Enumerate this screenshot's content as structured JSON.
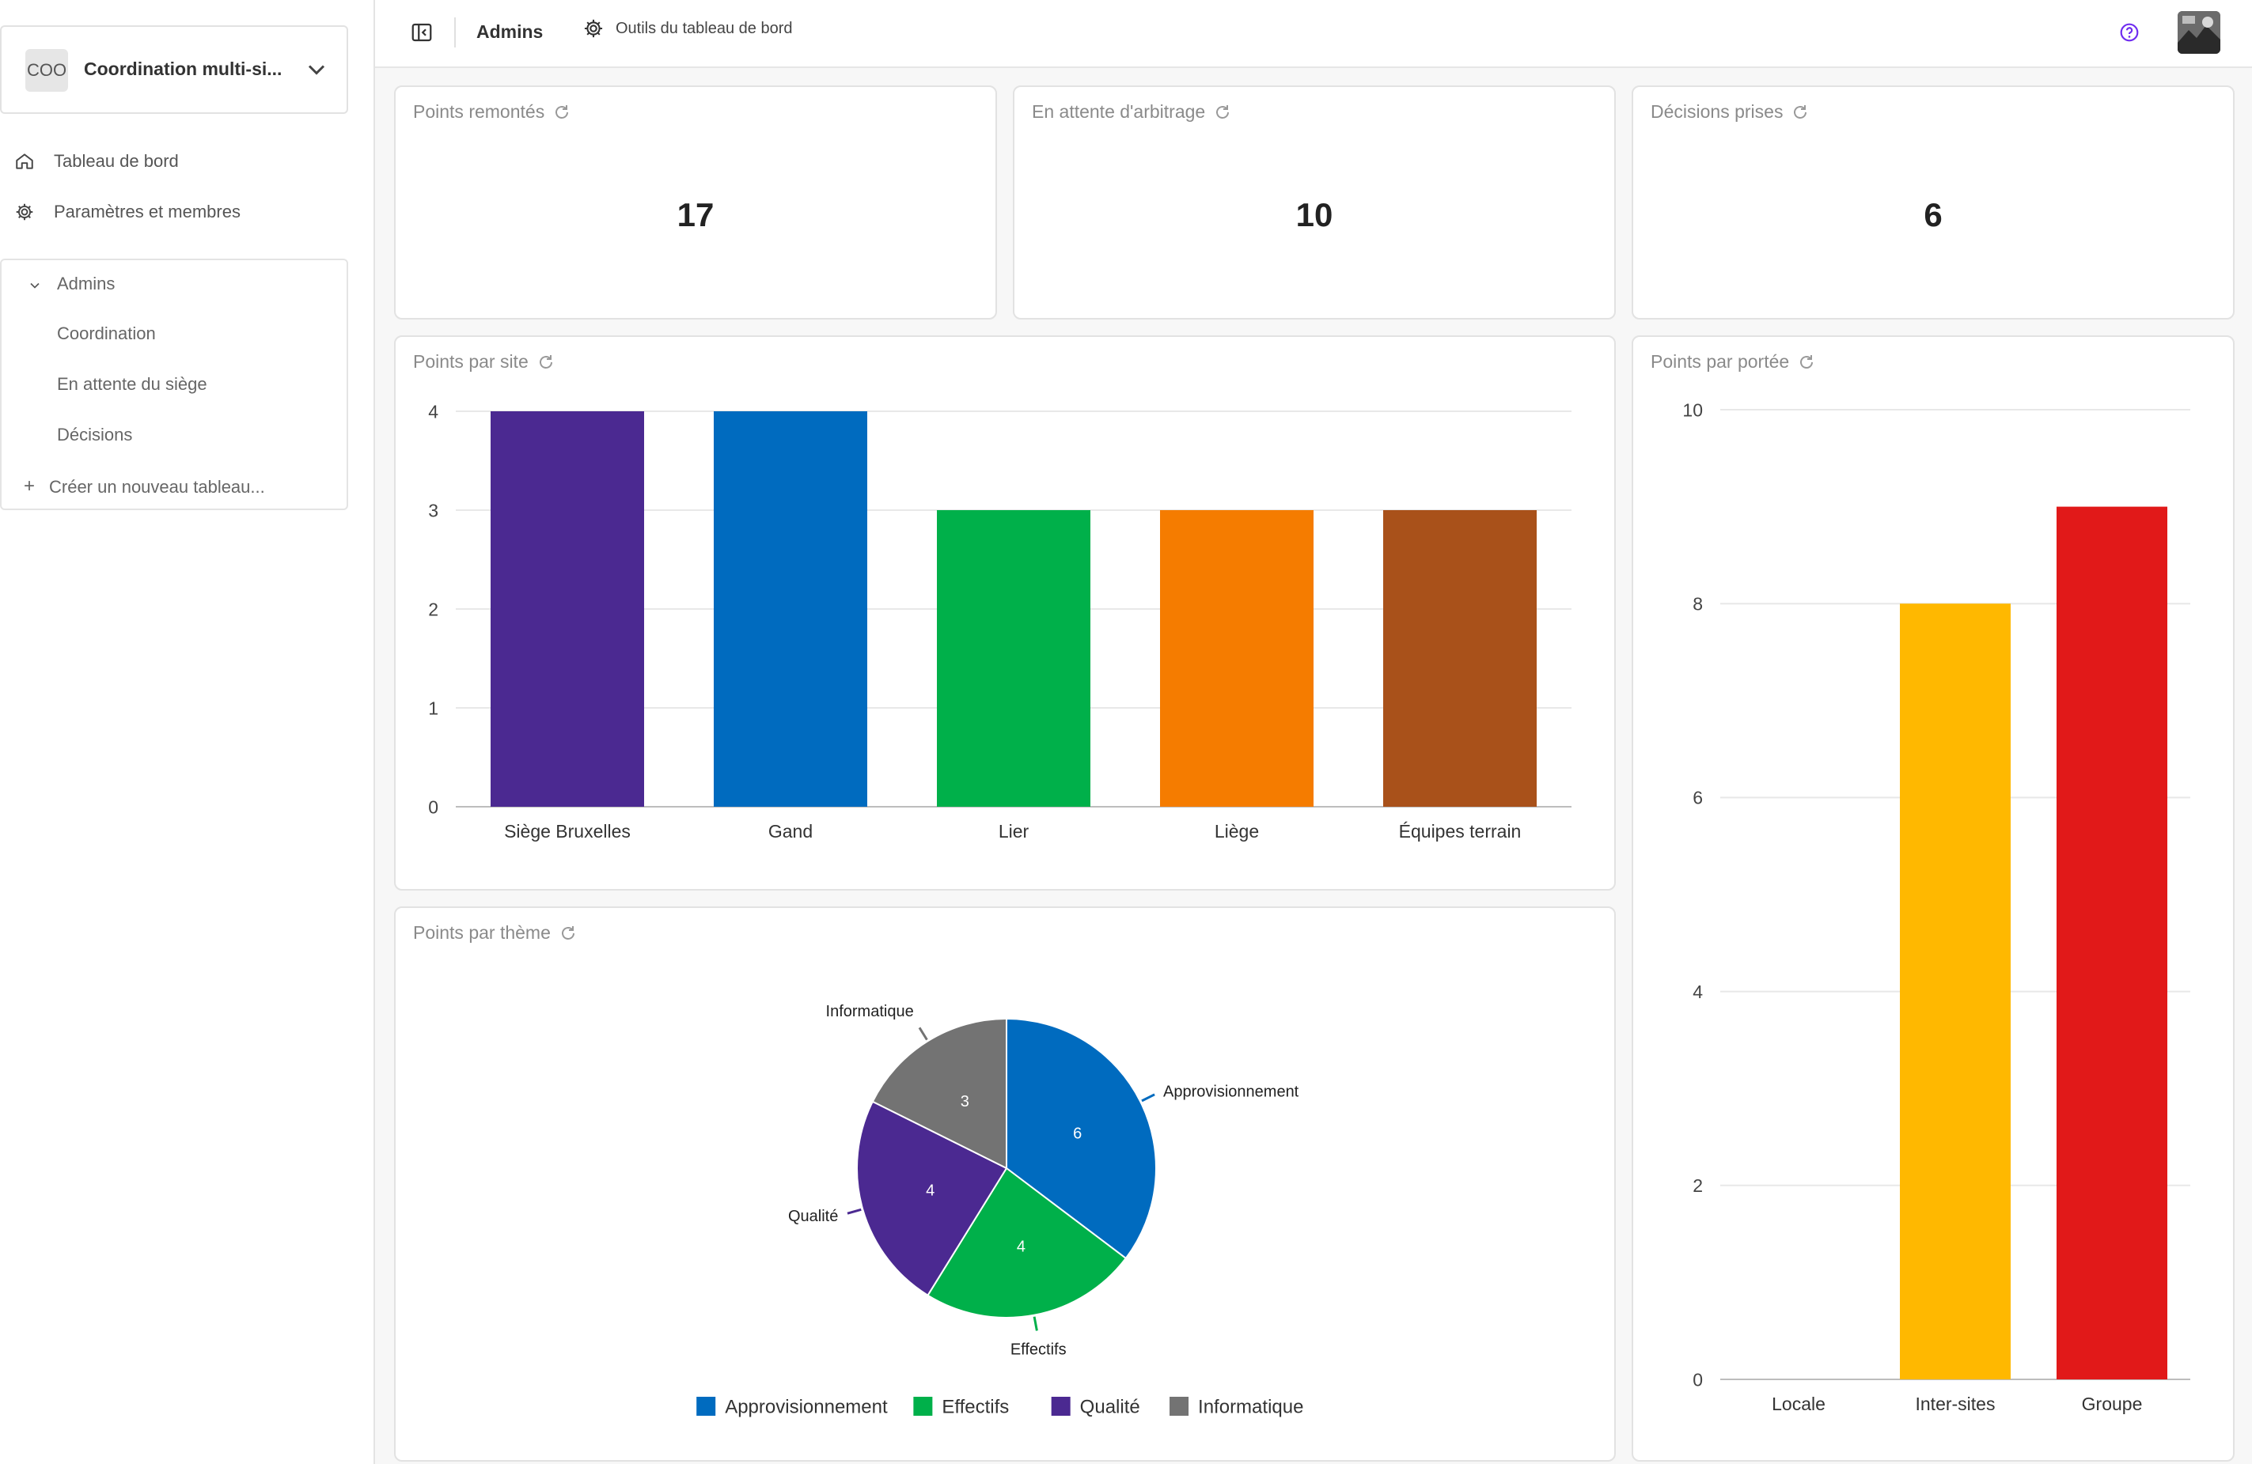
{
  "sidebar": {
    "workspace": {
      "badge": "COO",
      "name": "Coordination multi-si..."
    },
    "nav": [
      {
        "label": "Tableau de bord",
        "icon": "home-icon"
      },
      {
        "label": "Paramètres et membres",
        "icon": "gear-icon"
      }
    ],
    "group": {
      "label": "Admins"
    },
    "boards": [
      "Coordination",
      "En attente du siège",
      "Décisions"
    ],
    "create_label": "Créer un nouveau tableau..."
  },
  "topbar": {
    "title": "Admins",
    "tools_label": "Outils du tableau de bord"
  },
  "kpis": [
    {
      "title": "Points remontés",
      "value": "17"
    },
    {
      "title": "En attente d'arbitrage",
      "value": "10"
    },
    {
      "title": "Décisions prises",
      "value": "6"
    }
  ],
  "chart_titles": {
    "site": "Points par site",
    "scope": "Points par portée",
    "theme": "Points par thème"
  },
  "colors": {
    "accent": "#6f2cf0",
    "grid": "#e8e8e8"
  },
  "chart_data": [
    {
      "id": "site",
      "type": "bar",
      "categories": [
        "Siège Bruxelles",
        "Gand",
        "Lier",
        "Liège",
        "Équipes terrain"
      ],
      "values": [
        4,
        4,
        3,
        3,
        3
      ],
      "colors": [
        "#4b2991",
        "#006bbf",
        "#00b04a",
        "#f57c00",
        "#a9511a"
      ],
      "ylim": [
        0,
        4
      ],
      "yticks": [
        0,
        1,
        2,
        3,
        4
      ],
      "grid": true
    },
    {
      "id": "scope",
      "type": "bar",
      "categories": [
        "Locale",
        "Inter-sites",
        "Groupe"
      ],
      "values": [
        0,
        8,
        9
      ],
      "colors": [
        "#4b2991",
        "#ffb800",
        "#e11919"
      ],
      "ylim": [
        0,
        10
      ],
      "yticks": [
        0,
        2,
        4,
        6,
        8,
        10
      ],
      "grid": true
    },
    {
      "id": "theme",
      "type": "pie",
      "labels": [
        "Approvisionnement",
        "Effectifs",
        "Qualité",
        "Informatique"
      ],
      "values": [
        6,
        4,
        4,
        3
      ],
      "colors": [
        "#006bbf",
        "#00b04a",
        "#4b2991",
        "#737373"
      ],
      "legend": "bottom"
    }
  ]
}
